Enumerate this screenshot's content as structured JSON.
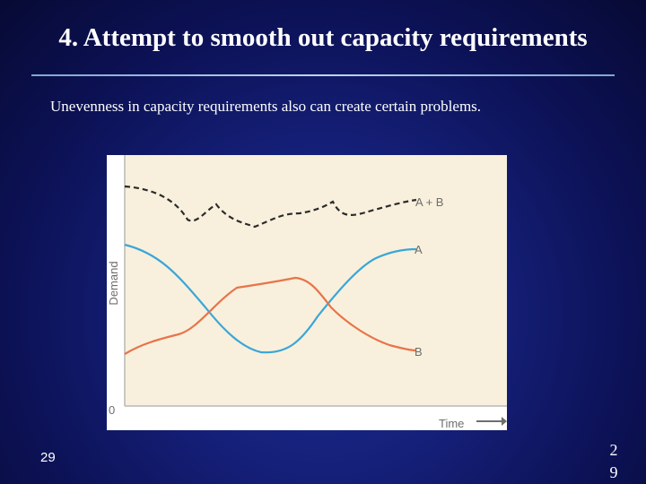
{
  "slide": {
    "title": "4. Attempt to smooth out capacity requirements",
    "subtitle": "Unevenness in capacity requirements also can create certain problems.",
    "slide_number_left": "29",
    "slide_number_right": [
      "2",
      "9"
    ]
  },
  "figure": {
    "y_axis_label": "Demand",
    "x_axis_label": "Time",
    "origin_label": "0",
    "series_labels": {
      "a_plus_b": "A + B",
      "a": "A",
      "b": "B"
    },
    "colors": {
      "plot_background": "#f8f0dc",
      "axis": "#b8b8b8",
      "series_a": "#3aa6d8",
      "series_b": "#e8744a",
      "series_a_plus_b": "#2b2b2b",
      "label_text": "#6e6e6e"
    }
  }
}
